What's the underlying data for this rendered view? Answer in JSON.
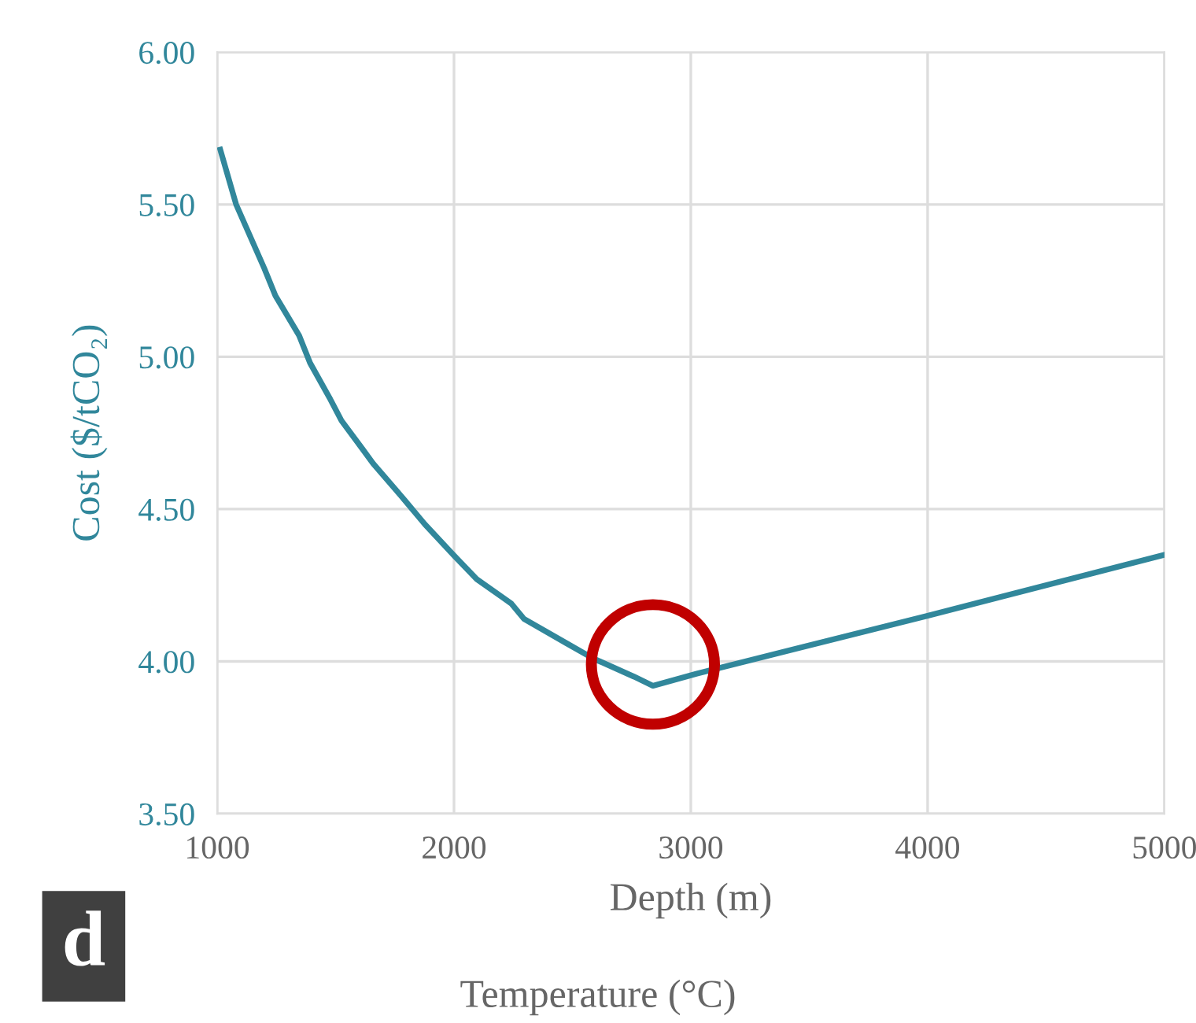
{
  "chart_data": {
    "type": "line",
    "xlabel": "Depth (m)",
    "ylabel": "Cost ($/tCO₂)",
    "x": [
      1013,
      1080,
      1199,
      1246,
      1346,
      1392,
      1478,
      1525,
      1611,
      1658,
      1791,
      1877,
      1997,
      2096,
      2242,
      2295,
      2474,
      2587,
      2760,
      2840,
      3026,
      4000,
      5000
    ],
    "series": [
      {
        "color": "#31879b",
        "values": [
          5.68,
          5.5,
          5.29,
          5.2,
          5.07,
          4.98,
          4.86,
          4.79,
          4.7,
          4.65,
          4.53,
          4.45,
          4.35,
          4.27,
          4.19,
          4.14,
          4.06,
          4.01,
          3.95,
          3.92,
          3.96,
          4.15,
          4.35
        ]
      }
    ],
    "xlim": [
      1000,
      5000
    ],
    "xticks": [
      1000,
      2000,
      3000,
      4000,
      5000
    ],
    "ylim": [
      3.5,
      6.0
    ],
    "yticks": [
      {
        "value": 3.5,
        "label": "3.50"
      },
      {
        "value": 4.0,
        "label": "4.00"
      },
      {
        "value": 4.5,
        "label": "4.50"
      },
      {
        "value": 5.0,
        "label": "5.00"
      },
      {
        "value": 5.5,
        "label": "5.50"
      },
      {
        "value": 6.0,
        "label": "6.00"
      }
    ],
    "grid": true,
    "legend": false,
    "marker": "none",
    "line_style": "solid",
    "annotations": [
      "d",
      "Temperature (°C)"
    ]
  }
}
